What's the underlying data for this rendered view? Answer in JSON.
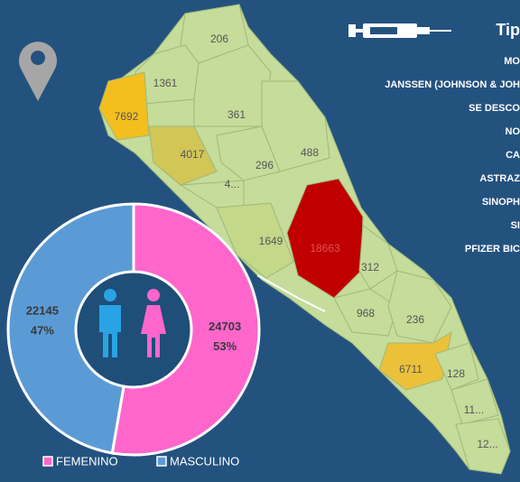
{
  "map": {
    "regions": [
      {
        "value": 206,
        "color": "#c5dc9a"
      },
      {
        "value": 1361,
        "color": "#c5dc9a"
      },
      {
        "value": 7692,
        "color": "#f2bf1e"
      },
      {
        "value": 361,
        "color": "#c5dc9a"
      },
      {
        "value": 4017,
        "color": "#d2c656"
      },
      {
        "value": 296,
        "color": "#c5dc9a"
      },
      {
        "value": 488,
        "color": "#c5dc9a"
      },
      {
        "label": "4...",
        "color": "#c5dc9a"
      },
      {
        "value": 1649,
        "color": "#c3d889"
      },
      {
        "value": 18663,
        "color": "#c00000"
      },
      {
        "value": 312,
        "color": "#c5dc9a"
      },
      {
        "value": 968,
        "color": "#c5dc9a"
      },
      {
        "value": 236,
        "color": "#c5dc9a"
      },
      {
        "value": 6711,
        "color": "#ecc13a"
      },
      {
        "value": 128,
        "color": "#c5dc9a"
      },
      {
        "label": "11...",
        "color": "#c5dc9a"
      },
      {
        "label": "12...",
        "color": "#c5dc9a"
      }
    ]
  },
  "panel": {
    "title": "Tip",
    "items": [
      "MO",
      "JANSSEN (JOHNSON & JOH",
      "SE DESCO",
      "NO",
      "CA",
      "ASTRAZ",
      "SINOPH",
      "SI",
      "PFIZER BIC"
    ]
  },
  "chart_data": {
    "type": "donut",
    "categories": [
      "FEMENINO",
      "MASCULINO"
    ],
    "values": [
      24703,
      22145
    ],
    "shares": [
      "53%",
      "47%"
    ],
    "colors": [
      "#ff66cc",
      "#5b9bd5"
    ]
  }
}
